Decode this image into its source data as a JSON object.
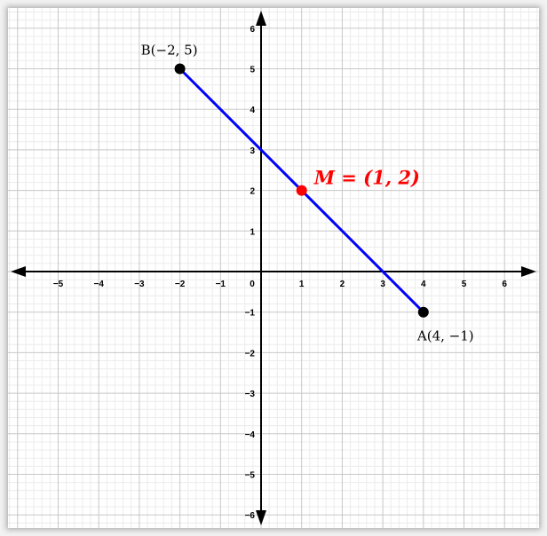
{
  "chart_data": {
    "type": "scatter",
    "title": "",
    "xlabel": "",
    "ylabel": "",
    "xlim": [
      -6.2,
      6.6
    ],
    "ylim": [
      -6.3,
      6.2
    ],
    "grid": true,
    "x_ticks": [
      -5,
      -4,
      -3,
      -2,
      -1,
      0,
      1,
      2,
      3,
      4,
      5,
      6
    ],
    "y_ticks": [
      6,
      5,
      4,
      3,
      2,
      1,
      -1,
      -2,
      -3,
      -4,
      -5,
      -6
    ],
    "segment": {
      "from": [
        -2,
        5
      ],
      "to": [
        4,
        -1
      ],
      "color": "#0000ff"
    },
    "points": [
      {
        "id": "B",
        "x": -2,
        "y": 5,
        "label": "B(−2, 5)",
        "color": "#000000"
      },
      {
        "id": "A",
        "x": 4,
        "y": -1,
        "label": "A(4, −1)",
        "color": "#000000"
      },
      {
        "id": "M",
        "x": 1,
        "y": 2,
        "label": "M = (1, 2)",
        "color": "#ff0000"
      }
    ]
  }
}
